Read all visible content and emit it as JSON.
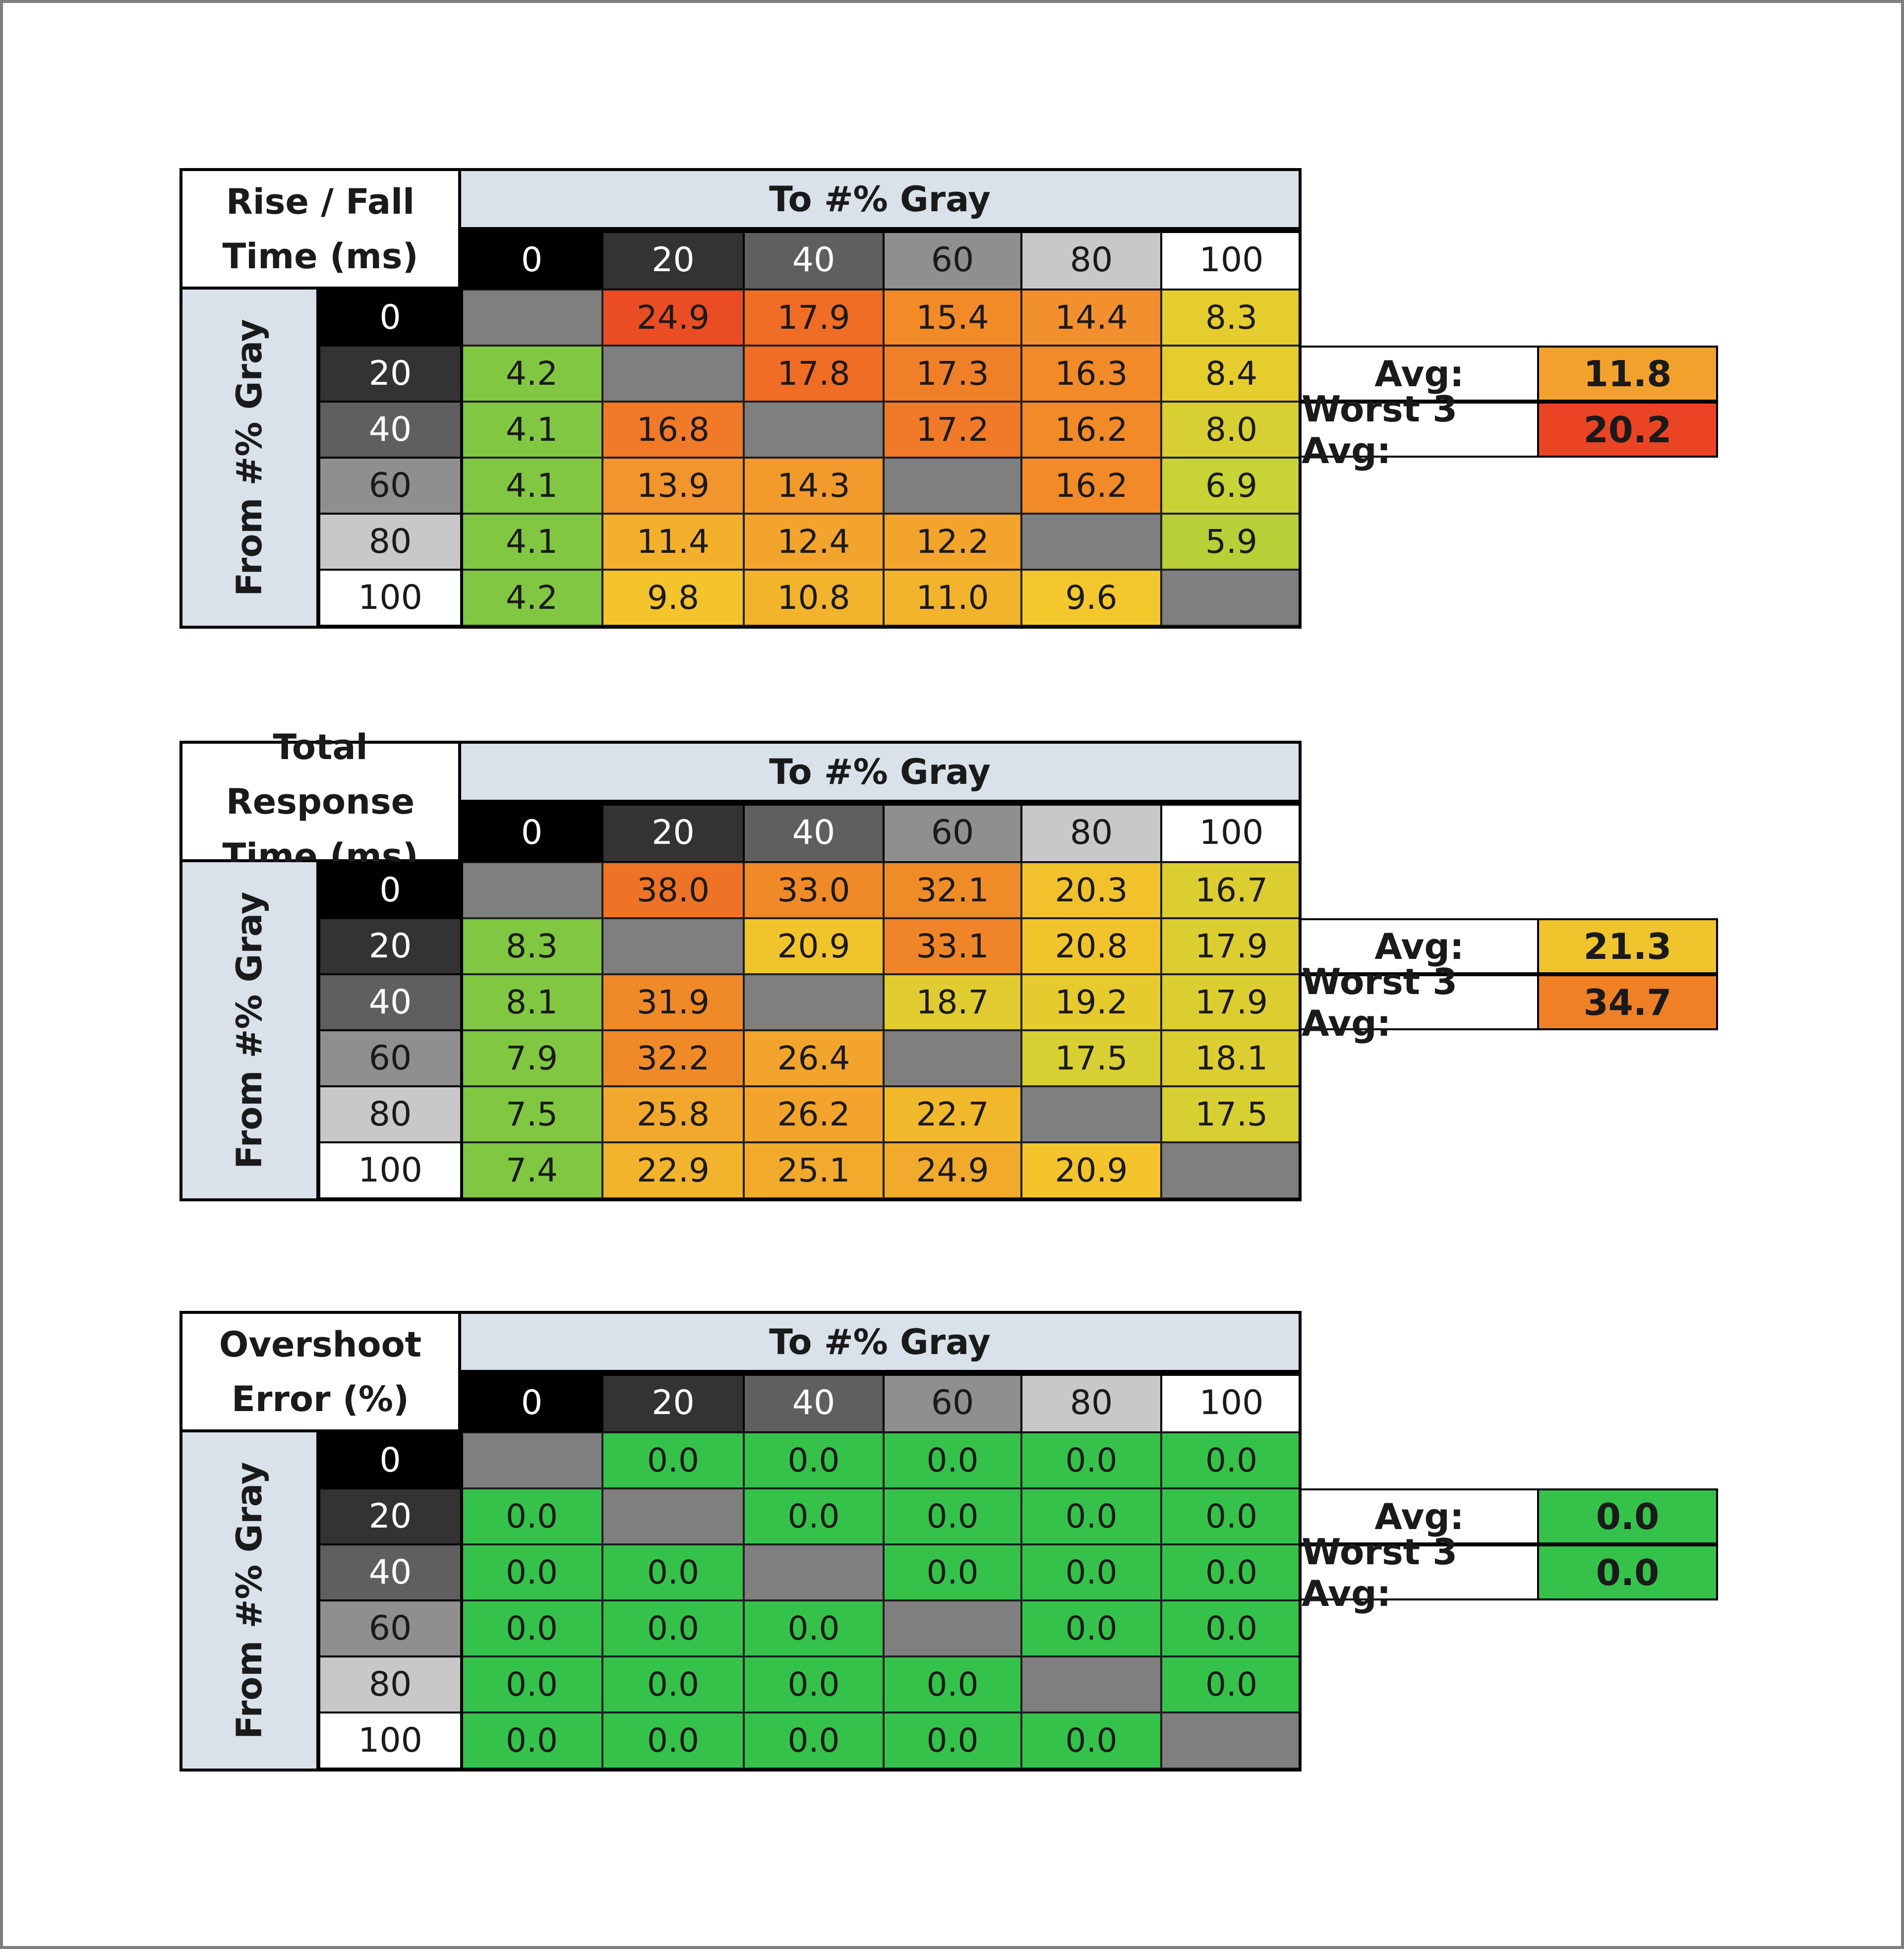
{
  "colors": {
    "header_blue": "#d9e1ea",
    "gray_levels": [
      "#000000",
      "#333333",
      "#5f5f5f",
      "#8f8f8f",
      "#c8c8c8",
      "#ffffff"
    ],
    "diagonal_gray": "#7f7f7f",
    "green_scale": "#7ec843",
    "overshoot_green": "#35c24b"
  },
  "chart_data": [
    {
      "type": "heatmap",
      "title_lines": [
        "Rise / Fall",
        "Time (ms)"
      ],
      "x_title": "To #% Gray",
      "y_title": "From #% Gray",
      "x_labels": [
        "0",
        "20",
        "40",
        "60",
        "80",
        "100"
      ],
      "y_labels": [
        "0",
        "20",
        "40",
        "60",
        "80",
        "100"
      ],
      "values": [
        [
          null,
          24.9,
          17.9,
          15.4,
          14.4,
          8.3
        ],
        [
          4.2,
          null,
          17.8,
          17.3,
          16.3,
          8.4
        ],
        [
          4.1,
          16.8,
          null,
          17.2,
          16.2,
          8.0
        ],
        [
          4.1,
          13.9,
          14.3,
          null,
          16.2,
          6.9
        ],
        [
          4.1,
          11.4,
          12.4,
          12.2,
          null,
          5.9
        ],
        [
          4.2,
          9.8,
          10.8,
          11.0,
          9.6,
          null
        ]
      ],
      "cell_colors": [
        [
          null,
          "#ea4d24",
          "#ef6d24",
          "#f28a28",
          "#f29030",
          "#e6cd2e"
        ],
        [
          "#82c741",
          null,
          "#ef6d24",
          "#f08028",
          "#f28a2a",
          "#e6cd2e"
        ],
        [
          "#82c741",
          "#f07a28",
          null,
          "#f07a28",
          "#f28a2a",
          "#d8cf33"
        ],
        [
          "#82c741",
          "#f2952c",
          "#f29a2c",
          null,
          "#f28a2a",
          "#c8d336"
        ],
        [
          "#82c741",
          "#f2b02c",
          "#f2a42c",
          "#f2a42c",
          null,
          "#b9cf38"
        ],
        [
          "#82c741",
          "#f4c42c",
          "#f2b42c",
          "#f2b42c",
          "#f4c82c",
          null
        ]
      ],
      "summary": {
        "avg_label": "Avg:",
        "avg_value": "11.8",
        "avg_color": "#f2a22c",
        "worst_label": "Worst 3 Avg:",
        "worst_value": "20.2",
        "worst_color": "#ea4424"
      }
    },
    {
      "type": "heatmap",
      "title_lines": [
        "Total Response",
        "Time (ms)"
      ],
      "x_title": "To #% Gray",
      "y_title": "From #% Gray",
      "x_labels": [
        "0",
        "20",
        "40",
        "60",
        "80",
        "100"
      ],
      "y_labels": [
        "0",
        "20",
        "40",
        "60",
        "80",
        "100"
      ],
      "values": [
        [
          null,
          38.0,
          33.0,
          32.1,
          20.3,
          16.7
        ],
        [
          8.3,
          null,
          20.9,
          33.1,
          20.8,
          17.9
        ],
        [
          8.1,
          31.9,
          null,
          18.7,
          19.2,
          17.9
        ],
        [
          7.9,
          32.2,
          26.4,
          null,
          17.5,
          18.1
        ],
        [
          7.5,
          25.8,
          26.2,
          22.7,
          null,
          17.5
        ],
        [
          7.4,
          22.9,
          25.1,
          24.9,
          20.9,
          null
        ]
      ],
      "cell_colors": [
        [
          null,
          "#ef7326",
          "#f08a28",
          "#f08c28",
          "#f2c22c",
          "#dcce30"
        ],
        [
          "#82c741",
          null,
          "#f2c42c",
          "#f08428",
          "#f2c42c",
          "#dcce30"
        ],
        [
          "#82c741",
          "#f08a28",
          null,
          "#e0cc30",
          "#e6cb2e",
          "#dcce30"
        ],
        [
          "#82c741",
          "#f08a28",
          "#f2a42c",
          null,
          "#d8cf32",
          "#dccd30"
        ],
        [
          "#82c741",
          "#f2a82c",
          "#f2a42c",
          "#f2b82c",
          null,
          "#d8cf32"
        ],
        [
          "#82c741",
          "#f2b42c",
          "#f2aa2c",
          "#f2aa2c",
          "#f4c42c",
          null
        ]
      ],
      "summary": {
        "avg_label": "Avg:",
        "avg_value": "21.3",
        "avg_color": "#f0c42c",
        "worst_label": "Worst 3 Avg:",
        "worst_value": "34.7",
        "worst_color": "#f08026"
      }
    },
    {
      "type": "heatmap",
      "title_lines": [
        "Overshoot",
        "Error (%)"
      ],
      "x_title": "To #% Gray",
      "y_title": "From #% Gray",
      "x_labels": [
        "0",
        "20",
        "40",
        "60",
        "80",
        "100"
      ],
      "y_labels": [
        "0",
        "20",
        "40",
        "60",
        "80",
        "100"
      ],
      "values": [
        [
          null,
          0.0,
          0.0,
          0.0,
          0.0,
          0.0
        ],
        [
          0.0,
          null,
          0.0,
          0.0,
          0.0,
          0.0
        ],
        [
          0.0,
          0.0,
          null,
          0.0,
          0.0,
          0.0
        ],
        [
          0.0,
          0.0,
          0.0,
          null,
          0.0,
          0.0
        ],
        [
          0.0,
          0.0,
          0.0,
          0.0,
          null,
          0.0
        ],
        [
          0.0,
          0.0,
          0.0,
          0.0,
          0.0,
          null
        ]
      ],
      "cell_colors": [
        [
          null,
          "#35c24b",
          "#35c24b",
          "#35c24b",
          "#35c24b",
          "#35c24b"
        ],
        [
          "#35c24b",
          null,
          "#35c24b",
          "#35c24b",
          "#35c24b",
          "#35c24b"
        ],
        [
          "#35c24b",
          "#35c24b",
          null,
          "#35c24b",
          "#35c24b",
          "#35c24b"
        ],
        [
          "#35c24b",
          "#35c24b",
          "#35c24b",
          null,
          "#35c24b",
          "#35c24b"
        ],
        [
          "#35c24b",
          "#35c24b",
          "#35c24b",
          "#35c24b",
          null,
          "#35c24b"
        ],
        [
          "#35c24b",
          "#35c24b",
          "#35c24b",
          "#35c24b",
          "#35c24b",
          null
        ]
      ],
      "summary": {
        "avg_label": "Avg:",
        "avg_value": "0.0",
        "avg_color": "#35c24b",
        "worst_label": "Worst 3 Avg:",
        "worst_value": "0.0",
        "worst_color": "#35c24b"
      }
    }
  ]
}
